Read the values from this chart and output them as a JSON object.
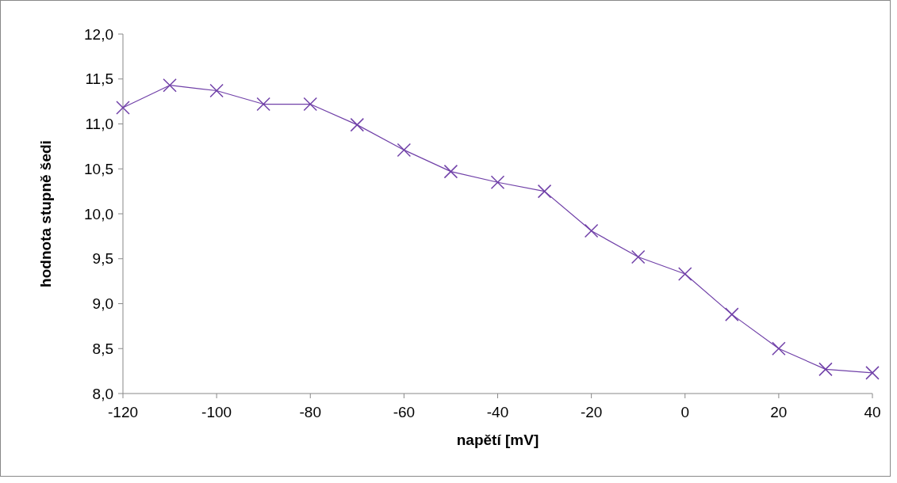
{
  "chart_data": {
    "type": "line",
    "xlabel": "napětí [mV]",
    "ylabel": "hodnota stupně šedi",
    "x": [
      -120,
      -110,
      -100,
      -90,
      -80,
      -70,
      -60,
      -50,
      -40,
      -30,
      -20,
      -10,
      0,
      10,
      20,
      30,
      40
    ],
    "series": [
      {
        "color": "#7040a8",
        "values": [
          11.18,
          11.43,
          11.37,
          11.22,
          11.22,
          10.99,
          10.71,
          10.47,
          10.35,
          10.25,
          9.81,
          9.52,
          9.33,
          8.88,
          8.5,
          8.27,
          8.23
        ]
      }
    ],
    "xlim": [
      -120,
      40
    ],
    "xticks": [
      -120,
      -100,
      -80,
      -60,
      -40,
      -20,
      0,
      20,
      40
    ],
    "ylim": [
      8,
      12
    ],
    "yticks": [
      {
        "value": 8,
        "label": "8,0"
      },
      {
        "value": 8.5,
        "label": "8,5"
      },
      {
        "value": 9,
        "label": "9,0"
      },
      {
        "value": 9.5,
        "label": "9,5"
      },
      {
        "value": 10,
        "label": "10,0"
      },
      {
        "value": 10.5,
        "label": "10,5"
      },
      {
        "value": 11,
        "label": "11,0"
      },
      {
        "value": 11.5,
        "label": "11,5"
      },
      {
        "value": 12,
        "label": "12,0"
      }
    ],
    "marker": "cross",
    "line_style": "solid"
  }
}
